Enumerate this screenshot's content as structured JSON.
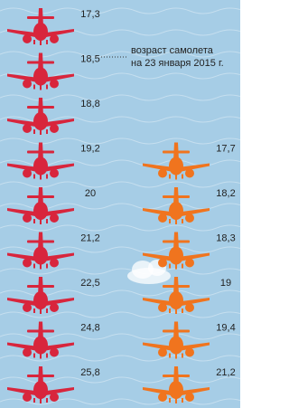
{
  "annotation": {
    "line1": "возраст самолета",
    "line2": "на 23 января 2015 г."
  },
  "columns": [
    {
      "color": "#d8253c",
      "planes": [
        "17,3",
        "18,5",
        "18,8",
        "19,2",
        "20",
        "21,2",
        "22,5",
        "24,8",
        "25,8"
      ]
    },
    {
      "color": "#f0741e",
      "planes": [
        "17,7",
        "18,2",
        "18,3",
        "19",
        "19,4",
        "21,2"
      ]
    }
  ]
}
